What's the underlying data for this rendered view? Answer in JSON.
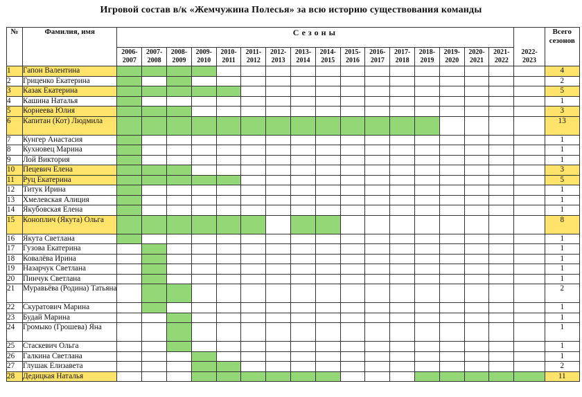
{
  "title": "Игровой состав в/к «Жемчужина Полесья» за всю историю существования команды",
  "headers": {
    "no": "№",
    "name": "Фамилия, имя",
    "seasons": "Сезоны",
    "total_line1": "Всего",
    "total_line2": "сезонов"
  },
  "seasons": [
    [
      "2006-",
      "2007"
    ],
    [
      "2007-",
      "2008"
    ],
    [
      "2008-",
      "2009"
    ],
    [
      "2009-",
      "2010"
    ],
    [
      "2010-",
      "2011"
    ],
    [
      "2011-",
      "2012"
    ],
    [
      "2012-",
      "2013"
    ],
    [
      "2013-",
      "2014"
    ],
    [
      "2014-",
      "2015"
    ],
    [
      "2015-",
      "2016"
    ],
    [
      "2016-",
      "2017"
    ],
    [
      "2017-",
      "2018"
    ],
    [
      "2018-",
      "2019"
    ],
    [
      "2019-",
      "2020"
    ],
    [
      "2020-",
      "2021"
    ],
    [
      "2021-",
      "2022"
    ],
    [
      "2022-",
      "2023"
    ]
  ],
  "colors": {
    "highlight": "#ffe36b",
    "played": "#93d776"
  },
  "players": [
    {
      "no": "1",
      "name": "Гапон Валентина",
      "total": "4",
      "hl": true,
      "played": [
        0,
        1,
        2,
        3
      ]
    },
    {
      "no": "2",
      "name": "Гриценко Екатерина",
      "total": "2",
      "hl": false,
      "played": [
        0,
        2
      ]
    },
    {
      "no": "3",
      "name": "Казак Екатерина",
      "total": "5",
      "hl": true,
      "played": [
        0,
        1,
        2,
        3,
        4
      ]
    },
    {
      "no": "4",
      "name": "Кашина Наталья",
      "total": "1",
      "hl": false,
      "played": [
        0
      ]
    },
    {
      "no": "5",
      "name": "Корнеева Юлия",
      "total": "3",
      "hl": true,
      "played": [
        0,
        1,
        2
      ]
    },
    {
      "no": "6",
      "name": "Капитан (Кот) Людмила",
      "total": "13",
      "hl": true,
      "played": [
        0,
        1,
        2,
        3,
        4,
        5,
        6,
        7,
        8,
        9,
        10,
        11,
        12
      ]
    },
    {
      "no": "7",
      "name": "Кунгер Анастасия",
      "total": "1",
      "hl": false,
      "played": [
        0
      ]
    },
    {
      "no": "8",
      "name": "Кухновец Марина",
      "total": "1",
      "hl": false,
      "played": [
        0
      ]
    },
    {
      "no": "9",
      "name": "Лой Виктория",
      "total": "1",
      "hl": false,
      "played": [
        0
      ]
    },
    {
      "no": "10",
      "name": "Пецевич Елена",
      "total": "3",
      "hl": true,
      "played": [
        0,
        1,
        2
      ]
    },
    {
      "no": "11",
      "name": "Руц Екатерина",
      "total": "5",
      "hl": true,
      "played": [
        0,
        1,
        2,
        3,
        4
      ]
    },
    {
      "no": "12",
      "name": "Титук Ирина",
      "total": "1",
      "hl": false,
      "played": [
        0
      ]
    },
    {
      "no": "13",
      "name": "Хмелевская Алиция",
      "total": "1",
      "hl": false,
      "played": [
        0
      ]
    },
    {
      "no": "14",
      "name": "Якубовская Елена",
      "total": "1",
      "hl": false,
      "played": [
        0
      ]
    },
    {
      "no": "15",
      "name": "Коноплич (Якута) Ольга",
      "total": "8",
      "hl": true,
      "played": [
        0,
        1,
        2,
        3,
        4,
        5,
        7,
        8
      ]
    },
    {
      "no": "16",
      "name": "Якута Светлана",
      "total": "1",
      "hl": false,
      "played": [
        0
      ]
    },
    {
      "no": "17",
      "name": "Гузова Екатерина",
      "total": "1",
      "hl": false,
      "played": [
        1
      ]
    },
    {
      "no": "18",
      "name": "Ковалёва Ирина",
      "total": "1",
      "hl": false,
      "played": [
        1
      ]
    },
    {
      "no": "19",
      "name": "Назарчук Светлана",
      "total": "1",
      "hl": false,
      "played": [
        1
      ]
    },
    {
      "no": "20",
      "name": "Пинчук Светлана",
      "total": "1",
      "hl": false,
      "played": [
        1
      ]
    },
    {
      "no": "21",
      "name": "Муравьёва (Родина) Татьяна",
      "total": "2",
      "hl": false,
      "played": [
        1,
        2
      ]
    },
    {
      "no": "22",
      "name": "Скуратович Марина",
      "total": "1",
      "hl": false,
      "played": [
        1
      ]
    },
    {
      "no": "23",
      "name": "Будай Марина",
      "total": "1",
      "hl": false,
      "played": [
        2
      ]
    },
    {
      "no": "24",
      "name": "Громыко (Грошева) Яна",
      "total": "1",
      "hl": false,
      "played": [
        2
      ]
    },
    {
      "no": "25",
      "name": "Стаскевич Ольга",
      "total": "1",
      "hl": false,
      "played": [
        2
      ]
    },
    {
      "no": "26",
      "name": "Галкина Светлана",
      "total": "1",
      "hl": false,
      "played": [
        3
      ]
    },
    {
      "no": "27",
      "name": "Глушак Елизавета",
      "total": "2",
      "hl": false,
      "played": [
        3,
        4
      ]
    },
    {
      "no": "28",
      "name": "Дедицкая Наталья",
      "total": "11",
      "hl": true,
      "played": [
        3,
        4,
        5,
        6,
        7,
        8,
        12,
        13,
        14,
        15,
        16
      ]
    }
  ]
}
